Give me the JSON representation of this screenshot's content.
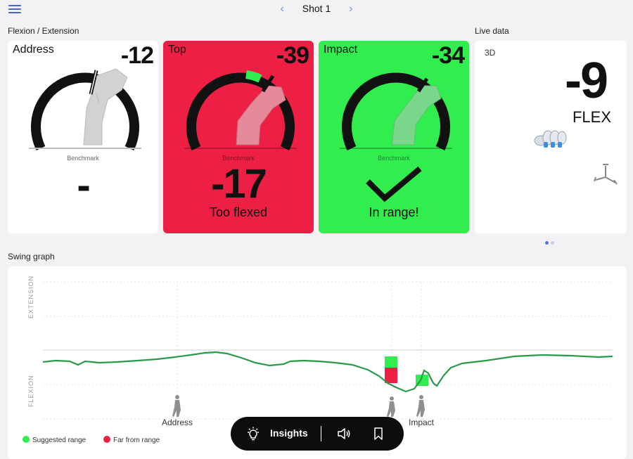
{
  "header": {
    "title": "Shot 1",
    "prev_arrow": "‹",
    "next_arrow": "›"
  },
  "sections": {
    "flexion": "Flexion / Extension",
    "live": "Live data",
    "swing": "Swing graph"
  },
  "cards": [
    {
      "name": "Address",
      "value": "-12",
      "benchmark_label": "Benchmark",
      "benchmark_value": "-",
      "status": "",
      "color": "#ffffff"
    },
    {
      "name": "Top",
      "value": "-39",
      "benchmark_label": "Benchmark",
      "benchmark_value": "-17",
      "status": "Too flexed",
      "color": "#ee1f45"
    },
    {
      "name": "Impact",
      "value": "-34",
      "benchmark_label": "Benchmark",
      "benchmark_value": "",
      "status": "In range!",
      "color": "#31ee4e"
    }
  ],
  "live": {
    "mode": "3D",
    "value": "-9",
    "metric": "FLEX"
  },
  "carousel": {
    "active": 0,
    "count": 2,
    "active_color": "#5a73d8",
    "inactive_color": "#c6cce8"
  },
  "graph": {
    "y_labels": {
      "top": "EXTENSION",
      "bottom": "FLEXION"
    },
    "markers": {
      "address": "Address",
      "impact": "Impact"
    },
    "line_color": "#2a9a4a",
    "suggested_color": "#31ee4e",
    "far_color": "#ee1f45"
  },
  "legend": {
    "suggested": "Suggested range",
    "far": "Far from range"
  },
  "toolbar": {
    "insights": "Insights"
  },
  "icons": {
    "menu": "menu-icon",
    "bulb": "lightbulb-icon",
    "speaker": "speaker-icon",
    "bookmark": "bookmark-icon",
    "hand": "hand-3d-icon",
    "axes": "axes-icon",
    "golfer": "golfer-icon"
  }
}
